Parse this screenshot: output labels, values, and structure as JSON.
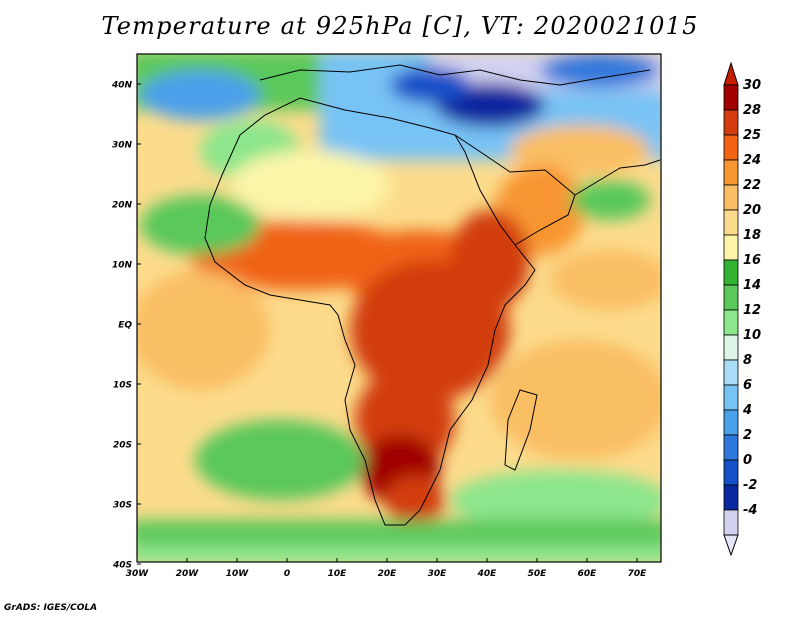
{
  "title": "Temperature at 925hPa [C], VT: 2020021015",
  "credit": "GrADS: IGES/COLA",
  "map": {
    "lat_labels": [
      "40N",
      "30N",
      "20N",
      "10N",
      "EQ",
      "10S",
      "20S",
      "30S",
      "40S"
    ],
    "lon_labels": [
      "30W",
      "20W",
      "10W",
      "0",
      "10E",
      "20E",
      "30E",
      "40E",
      "50E",
      "60E",
      "70E"
    ],
    "lat_range": [
      -40,
      45
    ],
    "lon_range": [
      -30,
      75
    ]
  },
  "colorbar": {
    "labels": [
      "30",
      "28",
      "25",
      "24",
      "22",
      "20",
      "18",
      "16",
      "14",
      "12",
      "10",
      "8",
      "6",
      "4",
      "2",
      "0",
      "-2",
      "-4"
    ],
    "colors": [
      "#a00000",
      "#d23c10",
      "#f06414",
      "#f89632",
      "#fabe64",
      "#fcdc8c",
      "#fcf5a8",
      "#32b432",
      "#5ac85a",
      "#8ce68c",
      "#dcf5e6",
      "#aadcf5",
      "#78c3f5",
      "#4ba0ea",
      "#2d78dc",
      "#1450c8",
      "#0a28a0",
      "#d2d2f0"
    ],
    "top_arrow_color": "#c81e00",
    "bottom_arrow_color": "#e6e6fa"
  }
}
